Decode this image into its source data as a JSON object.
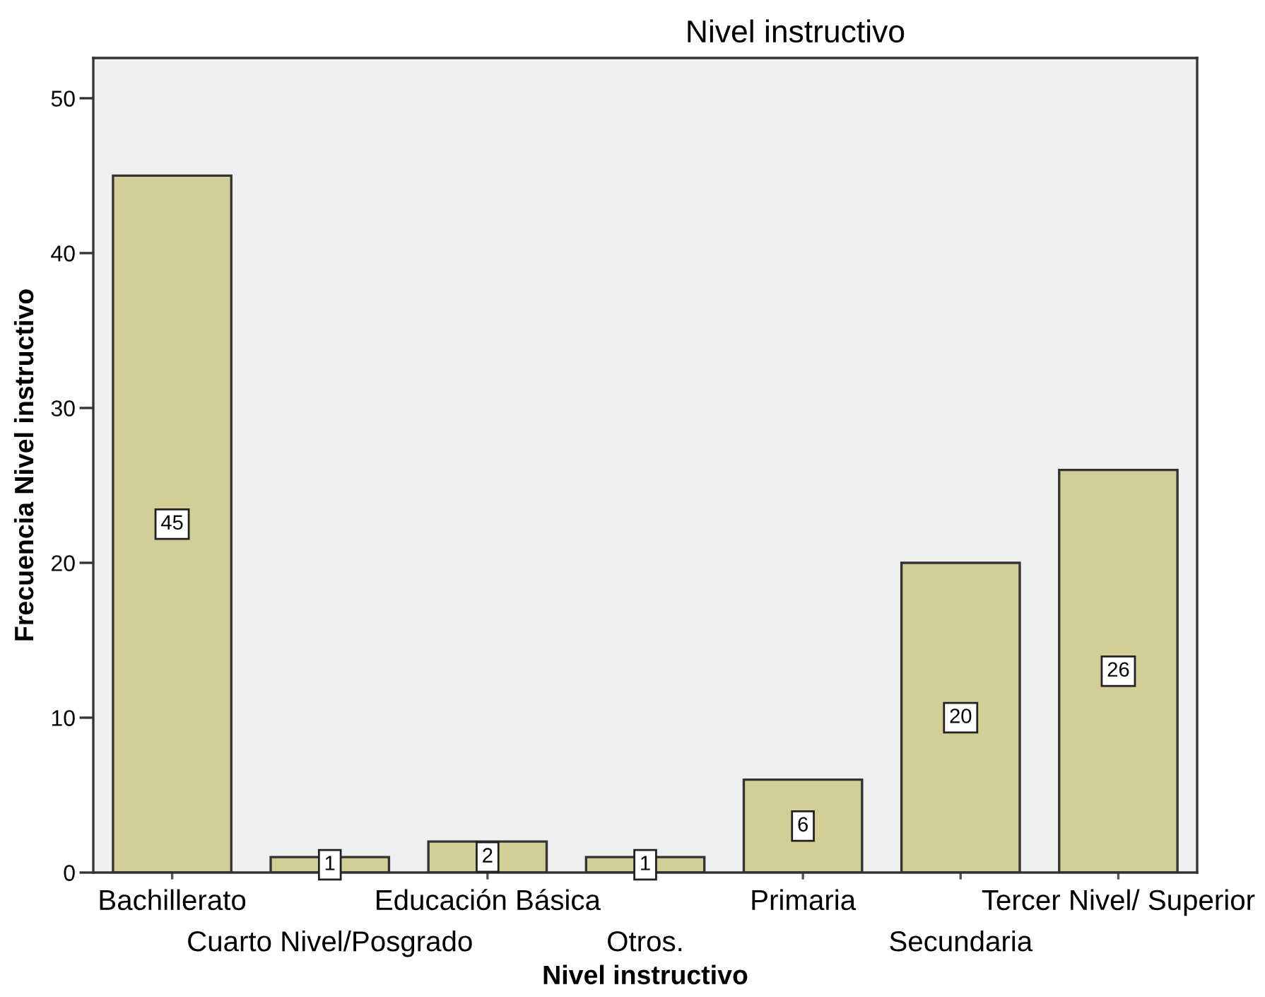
{
  "chart_data": {
    "type": "bar",
    "title": "Nivel instructivo",
    "xlabel": "Nivel instructivo",
    "ylabel": "Frecuencia Nivel instructivo",
    "categories": [
      "Bachillerato",
      "Cuarto Nivel/Posgrado",
      "Educación Básica",
      "Otros.",
      "Primaria",
      "Secundaria",
      "Tercer Nivel/ Superior"
    ],
    "values": [
      45,
      1,
      2,
      1,
      6,
      20,
      26
    ],
    "color": "#d3ce97",
    "ylim": [
      0,
      52.6
    ],
    "yticks": [
      0,
      10,
      20,
      30,
      40,
      50
    ],
    "data_labels": true
  }
}
